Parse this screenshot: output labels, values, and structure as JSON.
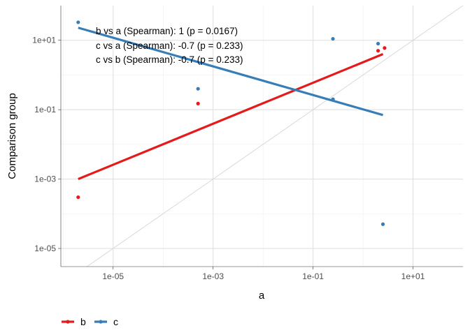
{
  "chart_data": {
    "type": "scatter",
    "xlabel": "a",
    "ylabel": "Comparison group",
    "log_x": true,
    "log_y": true,
    "xlim": [
      9e-07,
      100
    ],
    "ylim": [
      3e-06,
      100
    ],
    "x_ticks": [
      1e-05,
      0.001,
      0.1,
      10
    ],
    "x_tick_labels": [
      "1e-05",
      "1e-03",
      "1e-01",
      "1e+01"
    ],
    "y_ticks": [
      1e-05,
      0.001,
      0.1,
      10
    ],
    "y_tick_labels": [
      "1e-05",
      "1e-03",
      "1e-01",
      "1e+01"
    ],
    "grid": true,
    "identity_line": true,
    "identity_line_color": "#d9d9d9",
    "legend_position": "bottom-left",
    "series": [
      {
        "name": "b",
        "color": "#e41a1c",
        "points": [
          {
            "x": 2e-06,
            "y": 0.0003
          },
          {
            "x": 0.0005,
            "y": 0.15
          },
          {
            "x": 2,
            "y": 5
          },
          {
            "x": 2.7,
            "y": 6
          }
        ],
        "fit": {
          "x_start": 2e-06,
          "y_start": 0.001,
          "x_end": 2.5,
          "y_end": 4
        }
      },
      {
        "name": "c",
        "color": "#377eb8",
        "points": [
          {
            "x": 2e-06,
            "y": 33
          },
          {
            "x": 0.0005,
            "y": 0.4
          },
          {
            "x": 0.25,
            "y": 0.2
          },
          {
            "x": 0.25,
            "y": 11
          },
          {
            "x": 2,
            "y": 8
          },
          {
            "x": 2.5,
            "y": 5e-05
          }
        ],
        "fit": {
          "x_start": 2e-06,
          "y_start": 23,
          "x_end": 2.5,
          "y_end": 0.07
        }
      }
    ],
    "annotations": [
      "b vs a (Spearman): 1 (p = 0.0167)",
      "c vs a (Spearman): -0.7 (p = 0.233)",
      "c vs b (Spearman): -0.7 (p = 0.233)"
    ]
  }
}
